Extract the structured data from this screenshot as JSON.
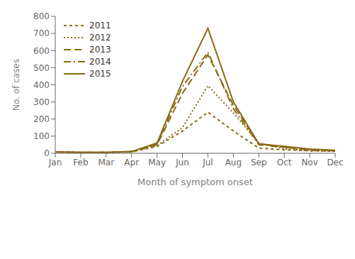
{
  "chart_data": {
    "type": "line",
    "xlabel": "Month of symptom onset",
    "ylabel": "No. of cases",
    "categories": [
      "Jan",
      "Feb",
      "Mar",
      "Apr",
      "May",
      "Jun",
      "Jul",
      "Aug",
      "Sep",
      "Oct",
      "Nov",
      "Dec"
    ],
    "series": [
      {
        "name": "2011",
        "color": "#8B6914",
        "line_style": "dashed_small",
        "values": [
          8,
          5,
          5,
          8,
          40,
          130,
          240,
          130,
          30,
          20,
          15,
          12
        ]
      },
      {
        "name": "2012",
        "color": "#8B6914",
        "line_style": "dotted",
        "values": [
          8,
          5,
          5,
          8,
          45,
          150,
          395,
          235,
          60,
          25,
          15,
          12
        ]
      },
      {
        "name": "2013",
        "color": "#8B6914",
        "line_style": "dashed_long",
        "values": [
          8,
          5,
          5,
          10,
          50,
          350,
          575,
          280,
          55,
          35,
          20,
          15
        ]
      },
      {
        "name": "2014",
        "color": "#8B6914",
        "line_style": "dashdot",
        "values": [
          8,
          5,
          5,
          10,
          55,
          390,
          590,
          260,
          50,
          35,
          20,
          15
        ]
      },
      {
        "name": "2015",
        "color": "#8B6914",
        "line_style": "solid",
        "values": [
          8,
          5,
          5,
          10,
          60,
          420,
          730,
          300,
          55,
          40,
          25,
          18
        ]
      }
    ],
    "ylim": [
      0,
      800
    ],
    "yticks": [
      0,
      100,
      200,
      300,
      400,
      500,
      600,
      700,
      800
    ],
    "grid": false,
    "legend": "upper left"
  }
}
